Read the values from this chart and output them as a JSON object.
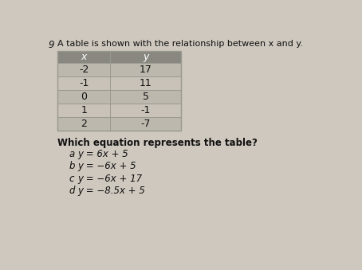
{
  "question_number": "9",
  "question_text": "A table is shown with the relationship between x and y.",
  "table_headers": [
    "x",
    "y"
  ],
  "table_data": [
    [
      "-2",
      "17"
    ],
    [
      "-1",
      "11"
    ],
    [
      "0",
      "5"
    ],
    [
      "1",
      "-1"
    ],
    [
      "2",
      "-7"
    ]
  ],
  "sub_question": "Which equation represents the table?",
  "options": [
    [
      "a",
      "y = 6x + 5"
    ],
    [
      "b",
      "y = −6x + 5"
    ],
    [
      "c",
      "y = −6x + 17"
    ],
    [
      "d",
      "y = −8.5x + 5"
    ]
  ],
  "bg_color": "#cec8be",
  "table_header_bg": "#888880",
  "table_row_bg": "#bdb8ae",
  "table_alt_row_bg": "#c8c2b8",
  "table_border_color": "#999990",
  "text_color": "#111111"
}
